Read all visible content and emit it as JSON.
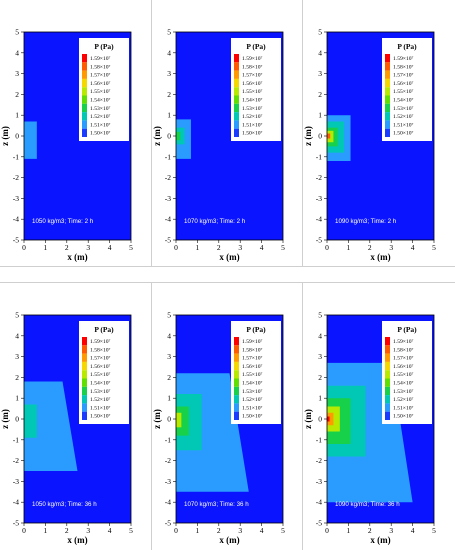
{
  "chart_data": [
    {
      "type": "heatmap",
      "panel": 1,
      "density": "1050 kg/m3",
      "time": "2 h",
      "annotation": "1050 kg/m3; Time: 2 h",
      "source_x": 0.1,
      "source_z": 0.0,
      "zones": [
        {
          "level": 15100000.0,
          "x_max": 0.6,
          "z_top": 0.7,
          "z_bottom": -1.1,
          "x_max_bottom": 0.6
        }
      ]
    },
    {
      "type": "heatmap",
      "panel": 2,
      "density": "1070 kg/m3",
      "time": "2 h",
      "annotation": "1070 kg/m3; Time: 2 h",
      "source_x": 0.1,
      "source_z": 0.0,
      "zones": [
        {
          "level": 15100000.0,
          "x_max": 0.7,
          "z_top": 0.8,
          "z_bottom": -1.1,
          "x_max_bottom": 0.7
        },
        {
          "level": 15200000.0,
          "x_max": 0.4,
          "z_top": 0.4,
          "z_bottom": -0.4,
          "x_max_bottom": 0.4
        },
        {
          "level": 15300000.0,
          "x_max": 0.2,
          "z_top": 0.2,
          "z_bottom": -0.2,
          "x_max_bottom": 0.2
        }
      ]
    },
    {
      "type": "heatmap",
      "panel": 3,
      "density": "1090 kg/m3",
      "time": "2 h",
      "annotation": "1090 kg/m3; Time: 2 h",
      "source_x": 0.1,
      "source_z": 0.0,
      "zones": [
        {
          "level": 15100000.0,
          "x_max": 1.1,
          "z_top": 1.0,
          "z_bottom": -1.2,
          "x_max_bottom": 1.1
        },
        {
          "level": 15200000.0,
          "x_max": 0.8,
          "z_top": 0.7,
          "z_bottom": -0.8,
          "x_max_bottom": 0.8
        },
        {
          "level": 15300000.0,
          "x_max": 0.5,
          "z_top": 0.4,
          "z_bottom": -0.5,
          "x_max_bottom": 0.5
        },
        {
          "level": 15500000.0,
          "x_max": 0.3,
          "z_top": 0.25,
          "z_bottom": -0.3,
          "x_max_bottom": 0.3
        },
        {
          "level": 15800000.0,
          "x_max": 0.15,
          "z_top": 0.12,
          "z_bottom": -0.12,
          "x_max_bottom": 0.15
        }
      ]
    },
    {
      "type": "heatmap",
      "panel": 4,
      "density": "1050 kg/m3",
      "time": "36 h",
      "annotation": "1050 kg/m3; Time: 36 h",
      "source_x": 0.1,
      "source_z": 0.0,
      "zones": [
        {
          "level": 15100000.0,
          "x_max": 1.8,
          "z_top": 1.8,
          "z_bottom": -2.5,
          "x_max_bottom": 2.5
        },
        {
          "level": 15200000.0,
          "x_max": 0.6,
          "z_top": 0.7,
          "z_bottom": -0.9,
          "x_max_bottom": 0.6
        }
      ]
    },
    {
      "type": "heatmap",
      "panel": 5,
      "density": "1070 kg/m3",
      "time": "36 h",
      "annotation": "1070 kg/m3; Time: 36 h",
      "source_x": 0.1,
      "source_z": 0.0,
      "zones": [
        {
          "level": 15100000.0,
          "x_max": 2.5,
          "z_top": 2.2,
          "z_bottom": -3.5,
          "x_max_bottom": 3.4
        },
        {
          "level": 15200000.0,
          "x_max": 1.2,
          "z_top": 1.2,
          "z_bottom": -1.5,
          "x_max_bottom": 1.2
        },
        {
          "level": 15300000.0,
          "x_max": 0.6,
          "z_top": 0.6,
          "z_bottom": -0.8,
          "x_max_bottom": 0.6
        },
        {
          "level": 15500000.0,
          "x_max": 0.25,
          "z_top": 0.3,
          "z_bottom": -0.4,
          "x_max_bottom": 0.25
        }
      ]
    },
    {
      "type": "heatmap",
      "panel": 6,
      "density": "1090 kg/m3",
      "time": "36 h",
      "annotation": "1090 kg/m3; Time: 36 h",
      "source_x": 0.1,
      "source_z": 0.0,
      "zones": [
        {
          "level": 15100000.0,
          "x_max": 3.0,
          "z_top": 2.7,
          "z_bottom": -4.0,
          "x_max_bottom": 4.0
        },
        {
          "level": 15200000.0,
          "x_max": 1.8,
          "z_top": 1.6,
          "z_bottom": -1.8,
          "x_max_bottom": 1.8
        },
        {
          "level": 15300000.0,
          "x_max": 1.1,
          "z_top": 1.0,
          "z_bottom": -1.2,
          "x_max_bottom": 1.1
        },
        {
          "level": 15500000.0,
          "x_max": 0.6,
          "z_top": 0.6,
          "z_bottom": -0.6,
          "x_max_bottom": 0.6
        },
        {
          "level": 15700000.0,
          "x_max": 0.3,
          "z_top": 0.3,
          "z_bottom": -0.3,
          "x_max_bottom": 0.3
        },
        {
          "level": 15900000.0,
          "x_max": 0.12,
          "z_top": 0.12,
          "z_bottom": -0.12,
          "x_max_bottom": 0.12
        }
      ]
    }
  ],
  "axes": {
    "xlabel": "x (m)",
    "ylabel": "z (m)",
    "xlim": [
      0,
      5
    ],
    "ylim": [
      -5,
      5
    ],
    "xticks": [
      "0",
      "1",
      "2",
      "3",
      "4",
      "5"
    ],
    "yticks": [
      "5",
      "4",
      "3",
      "2",
      "1",
      "0",
      "-1",
      "-2",
      "-3",
      "-4",
      "-5"
    ]
  },
  "legend": {
    "title": "P (Pa)",
    "position": "top-right",
    "levels": [
      15900000.0,
      15800000.0,
      15700000.0,
      15600000.0,
      15500000.0,
      15400000.0,
      15300000.0,
      15200000.0,
      15100000.0,
      15000000.0
    ],
    "labels": [
      "1.59×10⁷",
      "1.58×10⁷",
      "1.57×10⁷",
      "1.56×10⁷",
      "1.55×10⁷",
      "1.54×10⁷",
      "1.53×10⁷",
      "1.52×10⁷",
      "1.51×10⁷",
      "1.50×10⁷"
    ],
    "colors": [
      "#ff0000",
      "#ff5a00",
      "#ff9a00",
      "#f5d800",
      "#b8ea00",
      "#5fe000",
      "#18d14a",
      "#00c8b4",
      "#2a9cff",
      "#1a3cff"
    ]
  },
  "colors": {
    "background_field": "#0a14ff",
    "plot_frame": "#000000"
  }
}
